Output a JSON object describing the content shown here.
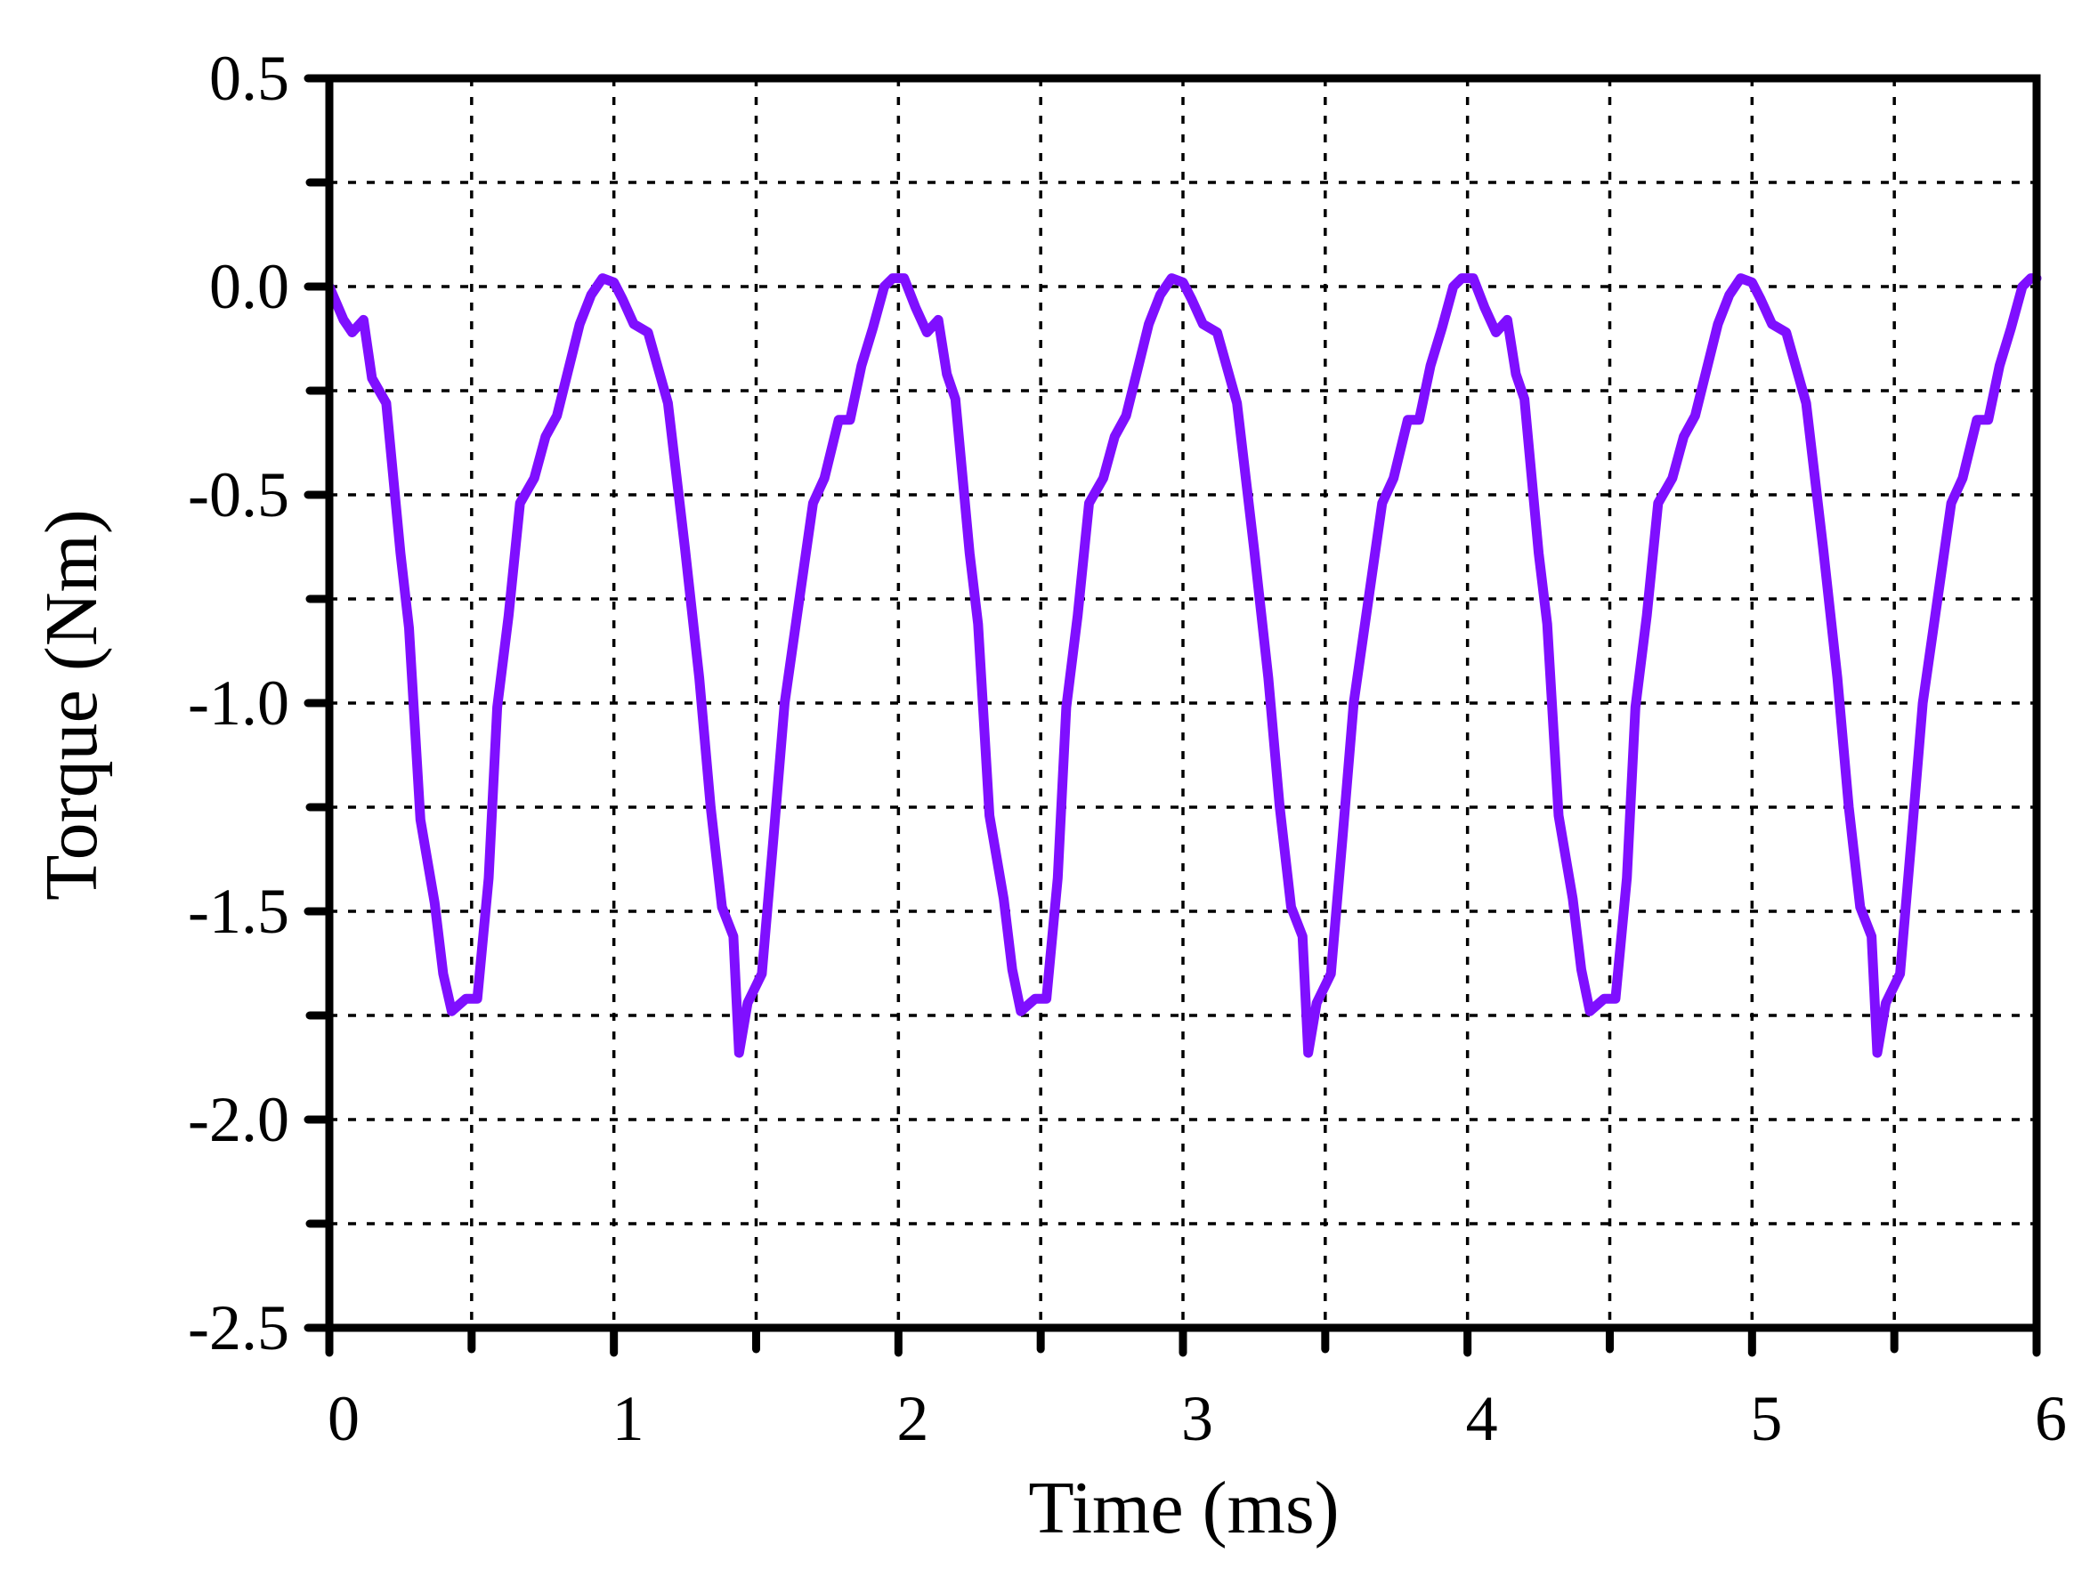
{
  "chart_data": {
    "type": "line",
    "xlabel": "Time (ms)",
    "ylabel": "Torque (Nm)",
    "xlim": [
      0,
      6
    ],
    "ylim": [
      -2.5,
      0.5
    ],
    "x_ticks": [
      "0",
      "1",
      "2",
      "3",
      "4",
      "5",
      "6"
    ],
    "y_ticks": [
      "0.5",
      "0.0",
      "-0.5",
      "-1.0",
      "-1.5",
      "-2.0",
      "-2.5"
    ],
    "x_tick_values": [
      0,
      1,
      2,
      3,
      4,
      5,
      6
    ],
    "y_tick_values": [
      0.5,
      0.0,
      -0.5,
      -1.0,
      -1.5,
      -2.0,
      -2.5
    ],
    "x_minor_values": [
      0.5,
      1.5,
      2.5,
      3.5,
      4.5,
      5.5
    ],
    "y_minor_values": [
      0.25,
      -0.25,
      -0.75,
      -1.25,
      -1.75,
      -2.25
    ],
    "grid": true,
    "series": [
      {
        "color": "#7f0fff",
        "points": [
          [
            0.0,
            0.0
          ],
          [
            0.05,
            -0.08
          ],
          [
            0.08,
            -0.11
          ],
          [
            0.12,
            -0.08
          ],
          [
            0.15,
            -0.22
          ],
          [
            0.2,
            -0.28
          ],
          [
            0.25,
            -0.64
          ],
          [
            0.28,
            -0.82
          ],
          [
            0.32,
            -1.28
          ],
          [
            0.37,
            -1.48
          ],
          [
            0.4,
            -1.65
          ],
          [
            0.43,
            -1.74
          ],
          [
            0.48,
            -1.71
          ],
          [
            0.52,
            -1.71
          ],
          [
            0.56,
            -1.42
          ],
          [
            0.59,
            -1.01
          ],
          [
            0.63,
            -0.79
          ],
          [
            0.67,
            -0.52
          ],
          [
            0.72,
            -0.46
          ],
          [
            0.76,
            -0.36
          ],
          [
            0.8,
            -0.31
          ],
          [
            0.84,
            -0.2
          ],
          [
            0.88,
            -0.09
          ],
          [
            0.92,
            -0.02
          ],
          [
            0.96,
            0.02
          ],
          [
            1.0,
            0.01
          ],
          [
            1.03,
            -0.03
          ],
          [
            1.07,
            -0.09
          ],
          [
            1.12,
            -0.11
          ],
          [
            1.19,
            -0.28
          ],
          [
            1.25,
            -0.63
          ],
          [
            1.3,
            -0.94
          ],
          [
            1.34,
            -1.25
          ],
          [
            1.38,
            -1.49
          ],
          [
            1.42,
            -1.56
          ],
          [
            1.44,
            -1.84
          ],
          [
            1.47,
            -1.72
          ],
          [
            1.52,
            -1.65
          ],
          [
            1.56,
            -1.33
          ],
          [
            1.6,
            -1.0
          ],
          [
            1.65,
            -0.76
          ],
          [
            1.7,
            -0.52
          ],
          [
            1.74,
            -0.46
          ],
          [
            1.79,
            -0.32
          ],
          [
            1.83,
            -0.32
          ],
          [
            1.87,
            -0.19
          ],
          [
            1.91,
            -0.1
          ],
          [
            1.95,
            0.0
          ],
          [
            1.98,
            0.02
          ],
          [
            2.02,
            0.02
          ],
          [
            2.06,
            -0.05
          ],
          [
            2.1,
            -0.11
          ],
          [
            2.14,
            -0.08
          ],
          [
            2.17,
            -0.21
          ],
          [
            2.2,
            -0.27
          ],
          [
            2.25,
            -0.64
          ],
          [
            2.28,
            -0.81
          ],
          [
            2.32,
            -1.27
          ],
          [
            2.37,
            -1.47
          ],
          [
            2.4,
            -1.64
          ],
          [
            2.43,
            -1.74
          ],
          [
            2.48,
            -1.71
          ],
          [
            2.52,
            -1.71
          ],
          [
            2.56,
            -1.42
          ],
          [
            2.59,
            -1.01
          ],
          [
            2.63,
            -0.79
          ],
          [
            2.67,
            -0.52
          ],
          [
            2.72,
            -0.46
          ],
          [
            2.76,
            -0.36
          ],
          [
            2.8,
            -0.31
          ],
          [
            2.84,
            -0.2
          ],
          [
            2.88,
            -0.09
          ],
          [
            2.92,
            -0.02
          ],
          [
            2.96,
            0.02
          ],
          [
            3.0,
            0.01
          ],
          [
            3.03,
            -0.03
          ],
          [
            3.07,
            -0.09
          ],
          [
            3.12,
            -0.11
          ],
          [
            3.19,
            -0.28
          ],
          [
            3.25,
            -0.63
          ],
          [
            3.3,
            -0.94
          ],
          [
            3.34,
            -1.25
          ],
          [
            3.38,
            -1.49
          ],
          [
            3.42,
            -1.56
          ],
          [
            3.44,
            -1.84
          ],
          [
            3.47,
            -1.72
          ],
          [
            3.52,
            -1.65
          ],
          [
            3.56,
            -1.33
          ],
          [
            3.6,
            -1.0
          ],
          [
            3.65,
            -0.76
          ],
          [
            3.7,
            -0.52
          ],
          [
            3.74,
            -0.46
          ],
          [
            3.79,
            -0.32
          ],
          [
            3.83,
            -0.32
          ],
          [
            3.87,
            -0.19
          ],
          [
            3.91,
            -0.1
          ],
          [
            3.95,
            0.0
          ],
          [
            3.98,
            0.02
          ],
          [
            4.02,
            0.02
          ],
          [
            4.06,
            -0.05
          ],
          [
            4.1,
            -0.11
          ],
          [
            4.14,
            -0.08
          ],
          [
            4.17,
            -0.21
          ],
          [
            4.2,
            -0.27
          ],
          [
            4.25,
            -0.64
          ],
          [
            4.28,
            -0.81
          ],
          [
            4.32,
            -1.27
          ],
          [
            4.37,
            -1.47
          ],
          [
            4.4,
            -1.64
          ],
          [
            4.43,
            -1.74
          ],
          [
            4.48,
            -1.71
          ],
          [
            4.52,
            -1.71
          ],
          [
            4.56,
            -1.42
          ],
          [
            4.59,
            -1.01
          ],
          [
            4.63,
            -0.79
          ],
          [
            4.67,
            -0.52
          ],
          [
            4.72,
            -0.46
          ],
          [
            4.76,
            -0.36
          ],
          [
            4.8,
            -0.31
          ],
          [
            4.84,
            -0.2
          ],
          [
            4.88,
            -0.09
          ],
          [
            4.92,
            -0.02
          ],
          [
            4.96,
            0.02
          ],
          [
            5.0,
            0.01
          ],
          [
            5.03,
            -0.03
          ],
          [
            5.07,
            -0.09
          ],
          [
            5.12,
            -0.11
          ],
          [
            5.19,
            -0.28
          ],
          [
            5.25,
            -0.63
          ],
          [
            5.3,
            -0.94
          ],
          [
            5.34,
            -1.25
          ],
          [
            5.38,
            -1.49
          ],
          [
            5.42,
            -1.56
          ],
          [
            5.44,
            -1.84
          ],
          [
            5.47,
            -1.72
          ],
          [
            5.52,
            -1.65
          ],
          [
            5.56,
            -1.33
          ],
          [
            5.6,
            -1.0
          ],
          [
            5.65,
            -0.76
          ],
          [
            5.7,
            -0.52
          ],
          [
            5.74,
            -0.46
          ],
          [
            5.79,
            -0.32
          ],
          [
            5.83,
            -0.32
          ],
          [
            5.87,
            -0.19
          ],
          [
            5.91,
            -0.1
          ],
          [
            5.95,
            0.0
          ],
          [
            5.98,
            0.02
          ],
          [
            6.0,
            0.02
          ]
        ]
      }
    ]
  }
}
